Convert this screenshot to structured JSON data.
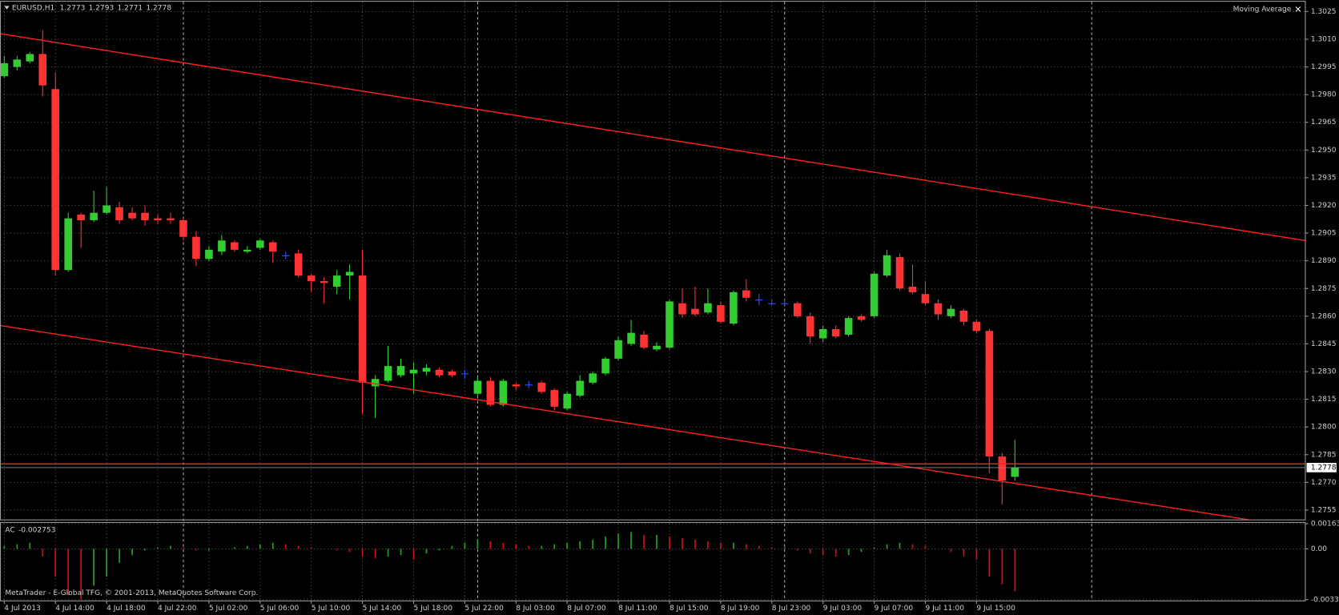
{
  "chart_data": [
    {
      "type": "candlestick",
      "title": "EURUSD,H1",
      "indicator_label": "Moving Average",
      "close_symbol": "×",
      "x": [
        "4 Jul 2013",
        null,
        null,
        null,
        "4 Jul 14:00",
        null,
        null,
        null,
        "4 Jul 18:00",
        null,
        null,
        null,
        "4 Jul 22:00",
        null,
        null,
        null,
        "5 Jul 02:00",
        null,
        null,
        null,
        "5 Jul 06:00",
        null,
        null,
        null,
        "5 Jul 10:00",
        null,
        null,
        null,
        "5 Jul 14:00",
        null,
        null,
        null,
        "5 Jul 18:00",
        null,
        null,
        null,
        "5 Jul 22:00",
        null,
        null,
        null,
        "8 Jul 03:00",
        null,
        null,
        null,
        "8 Jul 07:00",
        null,
        null,
        null,
        "8 Jul 11:00",
        null,
        null,
        null,
        "8 Jul 15:00",
        null,
        null,
        null,
        "8 Jul 19:00",
        null,
        null,
        null,
        "8 Jul 23:00",
        null,
        null,
        null,
        "9 Jul 03:00",
        null,
        null,
        null,
        "9 Jul 07:00",
        null,
        null,
        null,
        "9 Jul 11:00",
        null,
        null,
        null,
        "9 Jul 15:00",
        null,
        null,
        null
      ],
      "open": [
        1.299,
        1.2995,
        1.2998,
        1.3002,
        1.2983,
        1.2885,
        1.2915,
        1.2912,
        1.2916,
        1.2919,
        1.2916,
        1.2916,
        1.2913,
        1.2913,
        1.2912,
        1.2903,
        1.2891,
        1.2895,
        1.29,
        1.2895,
        1.2897,
        1.29,
        1.2893,
        1.2894,
        1.2882,
        1.2879,
        1.2876,
        1.2882,
        1.2882,
        1.2822,
        1.2825,
        1.2828,
        1.2829,
        1.283,
        1.2831,
        1.283,
        1.2829,
        1.2818,
        1.2825,
        1.2812,
        1.2823,
        1.2823,
        1.2824,
        1.282,
        1.281,
        1.2817,
        1.2824,
        1.2829,
        1.2837,
        1.2845,
        1.285,
        1.2842,
        1.2843,
        1.2867,
        1.2864,
        1.2862,
        1.2866,
        1.2856,
        1.2874,
        1.2869,
        1.2867,
        1.2867,
        1.2867,
        1.286,
        1.2848,
        1.2853,
        1.285,
        1.286,
        1.286,
        1.2882,
        1.2892,
        1.2876,
        1.2872,
        1.2867,
        1.286,
        1.2863,
        1.2857,
        1.2852,
        1.2784,
        1.2773
      ],
      "high": [
        1.3001,
        1.3001,
        1.3003,
        1.3015,
        1.2992,
        1.2916,
        1.2916,
        1.2928,
        1.293,
        1.2922,
        1.2919,
        1.292,
        1.2915,
        1.2916,
        1.2913,
        1.2906,
        1.2898,
        1.2904,
        1.2901,
        1.2898,
        1.2902,
        1.2901,
        1.2895,
        1.2896,
        1.2883,
        1.2881,
        1.2885,
        1.2888,
        1.2896,
        1.2828,
        1.2844,
        1.2837,
        1.2835,
        1.2834,
        1.2832,
        1.2831,
        1.2831,
        1.2827,
        1.2827,
        1.2826,
        1.2824,
        1.2825,
        1.2825,
        1.2821,
        1.2819,
        1.2828,
        1.283,
        1.2838,
        1.2849,
        1.2858,
        1.2852,
        1.2846,
        1.2869,
        1.2875,
        1.2876,
        1.2875,
        1.2868,
        1.2874,
        1.288,
        1.2872,
        1.2869,
        1.2869,
        1.2868,
        1.2862,
        1.2855,
        1.2855,
        1.286,
        1.2861,
        1.2884,
        1.2896,
        1.2894,
        1.2888,
        1.2879,
        1.2869,
        1.2866,
        1.2864,
        1.2858,
        1.2853,
        1.2786,
        1.2793
      ],
      "low": [
        1.2989,
        1.2993,
        1.2997,
        1.2979,
        1.2882,
        1.2884,
        1.2897,
        1.2911,
        1.2915,
        1.291,
        1.2912,
        1.2909,
        1.291,
        1.291,
        1.2901,
        1.2887,
        1.289,
        1.2893,
        1.2895,
        1.2894,
        1.2896,
        1.2889,
        1.2891,
        1.2881,
        1.2873,
        1.2867,
        1.2872,
        1.2869,
        1.2807,
        1.2805,
        1.2824,
        1.2827,
        1.2818,
        1.2828,
        1.2827,
        1.2827,
        1.2826,
        1.2817,
        1.2811,
        1.2811,
        1.282,
        1.2821,
        1.2818,
        1.2809,
        1.2809,
        1.2816,
        1.2823,
        1.2828,
        1.2836,
        1.2844,
        1.2842,
        1.2841,
        1.2842,
        1.2859,
        1.286,
        1.2861,
        1.2856,
        1.2855,
        1.2868,
        1.2866,
        1.2866,
        1.2866,
        1.2859,
        1.2845,
        1.2846,
        1.2848,
        1.2849,
        1.2857,
        1.2859,
        1.2881,
        1.2874,
        1.2872,
        1.2866,
        1.2858,
        1.2859,
        1.2855,
        1.2851,
        1.2775,
        1.2758,
        1.2771
      ],
      "close": [
        1.2997,
        1.2999,
        1.3002,
        1.2985,
        1.2885,
        1.2913,
        1.2912,
        1.2916,
        1.292,
        1.2912,
        1.2913,
        1.2912,
        1.2912,
        1.2912,
        1.2903,
        1.2891,
        1.2896,
        1.2901,
        1.2896,
        1.2896,
        1.2901,
        1.2895,
        1.2893,
        1.2882,
        1.2879,
        1.2878,
        1.2882,
        1.2884,
        1.2824,
        1.2826,
        1.2833,
        1.2833,
        1.2831,
        1.2832,
        1.2828,
        1.2828,
        1.2829,
        1.2825,
        1.2812,
        1.2825,
        1.2822,
        1.2823,
        1.2819,
        1.2811,
        1.2818,
        1.2825,
        1.2829,
        1.2837,
        1.2847,
        1.2851,
        1.2843,
        1.2844,
        1.2868,
        1.2861,
        1.2861,
        1.2867,
        1.2857,
        1.2873,
        1.287,
        1.2869,
        1.2867,
        1.2867,
        1.286,
        1.2849,
        1.2853,
        1.2849,
        1.2859,
        1.2858,
        1.2883,
        1.2893,
        1.2875,
        1.2873,
        1.2867,
        1.2861,
        1.2864,
        1.2857,
        1.2852,
        1.2784,
        1.2771,
        1.2778
      ],
      "up_color": "#33cc33",
      "down_color": "#ff3333",
      "doji_color": "#3355ff",
      "trendlines": [
        {
          "y": [
            1.3013,
            1.2901
          ],
          "color": "#ff2020"
        },
        {
          "y": [
            1.2855,
            1.2745
          ],
          "color": "#ff2020"
        }
      ],
      "hlines": [
        {
          "value": 1.278,
          "color": "#ff2020"
        }
      ],
      "bid_color": "#8a8a8a",
      "ylim": [
        1.275,
        1.303
      ],
      "yticks": [
        1.3025,
        {
          "value": 1.301,
          "label": "1.3010"
        },
        1.2995,
        {
          "value": 1.298,
          "label": "1.2980"
        },
        1.2965,
        {
          "value": 1.295,
          "label": "1.2950"
        },
        1.2935,
        {
          "value": 1.292,
          "label": "1.2920"
        },
        1.2905,
        {
          "value": 1.289,
          "label": "1.2890"
        },
        1.2875,
        {
          "value": 1.286,
          "label": "1.2860"
        },
        1.2845,
        {
          "value": 1.283,
          "label": "1.2830"
        },
        1.2815,
        {
          "value": 1.28,
          "label": "1.2800"
        },
        1.2785,
        {
          "value": 1.277,
          "label": "1.2770"
        },
        1.2755
      ],
      "grid": true
    },
    {
      "type": "bar",
      "name": "AC",
      "values": [
        0.0002,
        0.0003,
        0.0004,
        -0.0005,
        -0.0018,
        -0.003,
        -0.0033,
        -0.0024,
        -0.0018,
        -0.0009,
        -0.0004,
        -0.0001,
        0.0001,
        0.0002,
        0.0001,
        -0.0001,
        -0.0001,
        0,
        0.0001,
        0.0002,
        0.0003,
        0.0004,
        0.0003,
        0.0002,
        0.0001,
        0,
        -0.0001,
        -0.0002,
        -0.0005,
        -0.0006,
        -0.0005,
        -0.0004,
        -0.0007,
        -0.0003,
        -0.0001,
        0.0002,
        0.0004,
        0.0006,
        0.0005,
        0.0004,
        0.0003,
        0.0002,
        0.0002,
        0.0003,
        0.0004,
        0.0005,
        0.0006,
        0.0008,
        0.001,
        0.0011,
        0.0009,
        0.0009,
        0.0008,
        0.0007,
        0.0006,
        0.0005,
        0.0004,
        0.0004,
        0.0003,
        0.0002,
        0.0001,
        0.0001,
        -0.0001,
        -0.0003,
        -0.0004,
        -0.0005,
        -0.0004,
        -0.0002,
        0.0001,
        0.0003,
        0.0004,
        0.0003,
        0.0002,
        0,
        -0.0002,
        -0.0005,
        -0.0007,
        -0.0018,
        -0.0023,
        -0.002753
      ],
      "up_color": "#22a022",
      "down_color": "#d01010",
      "ylim": [
        -0.0033,
        0.001634
      ],
      "yticks": [
        0.001634,
        {
          "value": 0,
          "label": "0.00"
        },
        {
          "value": -0.0033,
          "label": "-0.00330"
        }
      ],
      "grid": true
    }
  ],
  "footer": "MetaTrader - E-Global TFG, © 2001-2013, MetaQuotes Software Corp."
}
